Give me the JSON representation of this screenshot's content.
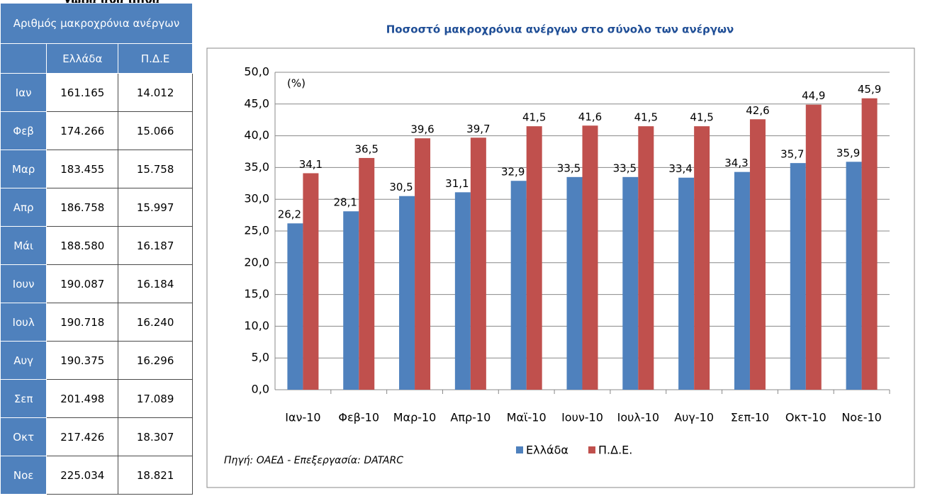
{
  "header": "χώρα ανά μήνα",
  "table": {
    "title": "Αριθμός μακροχρόνια ανέργων",
    "columns": [
      "Ελλάδα",
      "Π.Δ.Ε"
    ],
    "rows": [
      [
        "Ιαν",
        "161.165",
        "14.012"
      ],
      [
        "Φεβ",
        "174.266",
        "15.066"
      ],
      [
        "Μαρ",
        "183.455",
        "15.758"
      ],
      [
        "Απρ",
        "186.758",
        "15.997"
      ],
      [
        "Μάι",
        "188.580",
        "16.187"
      ],
      [
        "Ιουν",
        "190.087",
        "16.184"
      ],
      [
        "Ιουλ",
        "190.718",
        "16.240"
      ],
      [
        "Αυγ",
        "190.375",
        "16.296"
      ],
      [
        "Σεπ",
        "201.498",
        "17.089"
      ],
      [
        "Οκτ",
        "217.426",
        "18.307"
      ],
      [
        "Νοε",
        "225.034",
        "18.821"
      ]
    ]
  },
  "chart_data": {
    "type": "bar",
    "title": "Ποσοστό μακροχρόνια ανέργων στο σύνολο των ανέργων",
    "annotation": "(%)",
    "source": "Πηγή: ΟΑΕΔ - Επεξεργασία: DATARC",
    "categories": [
      "Ιαν-10",
      "Φεβ-10",
      "Μαρ-10",
      "Απρ-10",
      "Μαϊ-10",
      "Ιουν-10",
      "Ιουλ-10",
      "Αυγ-10",
      "Σεπ-10",
      "Οκτ-10",
      "Νοε-10"
    ],
    "series": [
      {
        "name": "Ελλάδα",
        "color": "#4f81bd",
        "values": [
          26.2,
          28.1,
          30.5,
          31.1,
          32.9,
          33.5,
          33.5,
          33.4,
          34.3,
          35.7,
          35.9
        ],
        "value_labels": [
          "26,2",
          "28,1",
          "30,5",
          "31,1",
          "32,9",
          "33,5",
          "33,5",
          "33,4",
          "34,3",
          "35,7",
          "35,9"
        ]
      },
      {
        "name": "Π.Δ.Ε.",
        "color": "#c0504d",
        "values": [
          34.1,
          36.5,
          39.6,
          39.7,
          41.5,
          41.6,
          41.5,
          41.5,
          42.6,
          44.9,
          45.9
        ],
        "value_labels": [
          "34,1",
          "36,5",
          "39,6",
          "39,7",
          "41,5",
          "41,6",
          "41,5",
          "41,5",
          "42,6",
          "44,9",
          "45,9"
        ]
      }
    ],
    "ylim": [
      0,
      50
    ],
    "yticks": [
      {
        "value": 0,
        "label": "0,0"
      },
      {
        "value": 5,
        "label": "5,0"
      },
      {
        "value": 10,
        "label": "10,0"
      },
      {
        "value": 15,
        "label": "15,0"
      },
      {
        "value": 20,
        "label": "20,0"
      },
      {
        "value": 25,
        "label": "25,0"
      },
      {
        "value": 30,
        "label": "30,0"
      },
      {
        "value": 35,
        "label": "35,0"
      },
      {
        "value": 40,
        "label": "40,0"
      },
      {
        "value": 45,
        "label": "45,0"
      },
      {
        "value": 50,
        "label": "50,0"
      }
    ],
    "grid": true
  }
}
